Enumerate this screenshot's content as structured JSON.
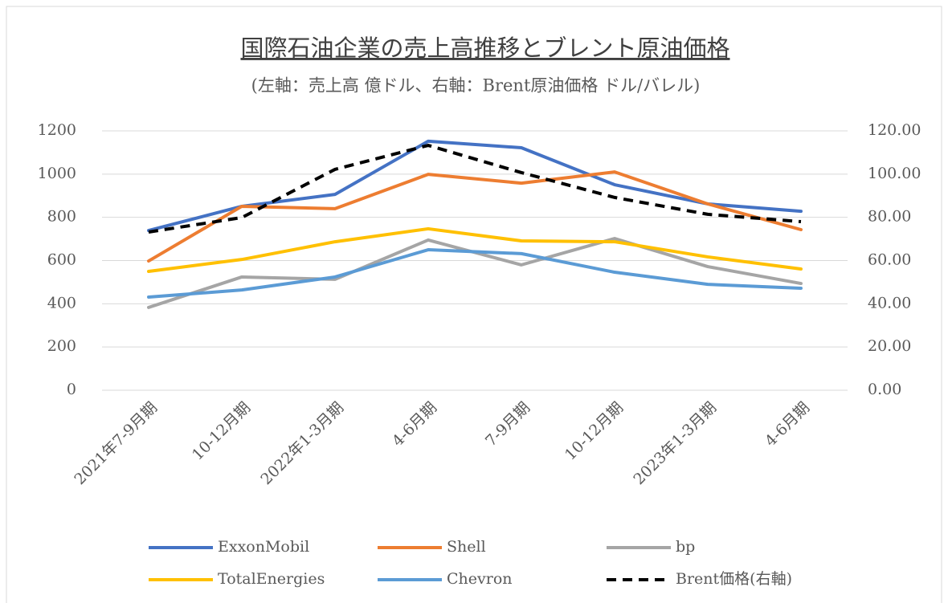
{
  "chart_data": {
    "type": "line",
    "title": "国際石油企業の売上高推移とブレント原油価格",
    "subtitle": "(左軸：売上高 億ドル、右軸：Brent原油価格 ドル/バレル)",
    "categories": [
      "2021年7-9月期",
      "10-12月期",
      "2022年1-3月期",
      "4-6月期",
      "7-9月期",
      "10-12月期",
      "2023年1-3月期",
      "4-6月期"
    ],
    "ylim": [
      0,
      1200
    ],
    "yticks": [
      0,
      200,
      400,
      600,
      800,
      1000,
      1200
    ],
    "y2lim": [
      0,
      120
    ],
    "y2ticks": [
      {
        "value": 0,
        "label": "0.00"
      },
      {
        "value": 20,
        "label": "20.00"
      },
      {
        "value": 40,
        "label": "40.00"
      },
      {
        "value": 60,
        "label": "60.00"
      },
      {
        "value": 80,
        "label": "80.00"
      },
      {
        "value": 100,
        "label": "100.00"
      },
      {
        "value": 120,
        "label": "120.00"
      }
    ],
    "grid": true,
    "legend": "bottom",
    "series": [
      {
        "name": "ExxonMobil",
        "color": "#4472c4",
        "values": [
          739,
          851,
          906,
          1152,
          1122,
          951,
          862,
          828
        ]
      },
      {
        "name": "Shell",
        "color": "#ed7d31",
        "values": [
          598,
          851,
          840,
          999,
          958,
          1010,
          862,
          743
        ]
      },
      {
        "name": "bp",
        "color": "#a5a5a5",
        "values": [
          383,
          524,
          513,
          695,
          580,
          702,
          572,
          494
        ]
      },
      {
        "name": "TotalEnergies",
        "color": "#ffc000",
        "values": [
          550,
          605,
          687,
          747,
          691,
          687,
          617,
          561
        ]
      },
      {
        "name": "Chevron",
        "color": "#5b9bd5",
        "values": [
          431,
          464,
          524,
          650,
          632,
          546,
          490,
          472
        ]
      },
      {
        "name": "Brent価格(右軸)",
        "color": "#000000",
        "dash": true,
        "axis": "y2",
        "values": [
          73.2,
          79.9,
          102.2,
          113.3,
          100.7,
          89.2,
          81.4,
          78.0
        ]
      }
    ]
  }
}
